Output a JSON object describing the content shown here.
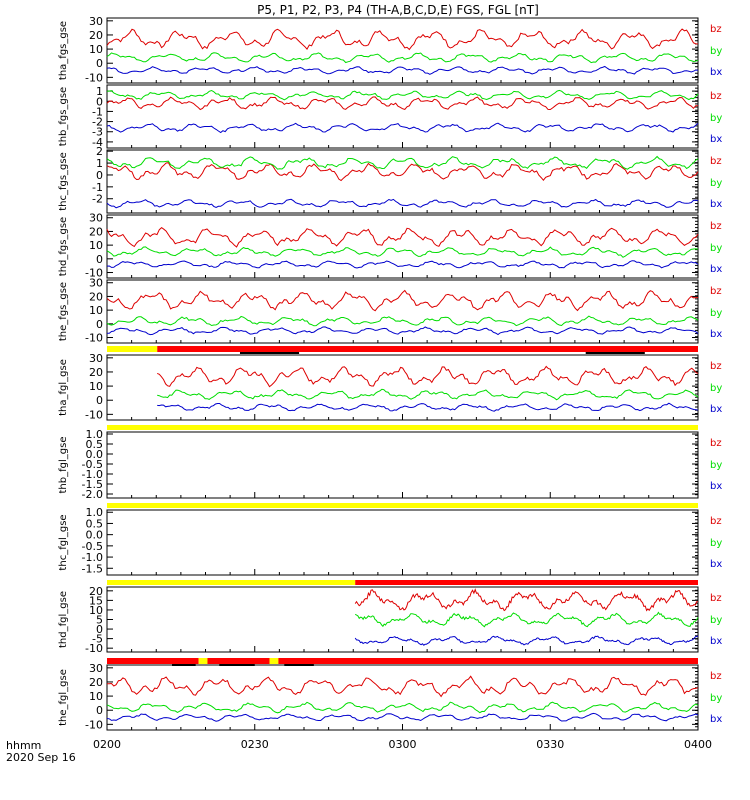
{
  "title": "P5, P1, P2, P3, P4 (TH-A,B,C,D,E) FGS, FGL [nT]",
  "footer": {
    "time_label": "hhmm",
    "date": "2020 Sep 16"
  },
  "colors": {
    "bz": "#dd0000",
    "by": "#00dd00",
    "bx": "#0000cc",
    "flag_red": "#ff0000",
    "flag_yellow": "#ffff00",
    "flag_black": "#000000"
  },
  "chart_data": {
    "type": "line",
    "x_axis": {
      "ticks": [
        "0200",
        "0230",
        "0300",
        "0330",
        "0400"
      ],
      "range_hours": [
        2.0,
        4.0
      ]
    },
    "panels": [
      {
        "label": "tha_fgs_gse",
        "yticks": [
          "30",
          "20",
          "10",
          "0",
          "-10"
        ],
        "ylim": [
          -14,
          32
        ],
        "series": [
          {
            "name": "bz",
            "level": 17,
            "amp": 4
          },
          {
            "name": "by",
            "level": 4,
            "amp": 2
          },
          {
            "name": "bx",
            "level": -5,
            "amp": 1.5
          }
        ]
      },
      {
        "label": "thb_fgs_gse",
        "yticks": [
          "1",
          "0",
          "-1",
          "-2",
          "-3",
          "-4"
        ],
        "ylim": [
          -4.6,
          1.6
        ],
        "series": [
          {
            "name": "bz",
            "level": -0.2,
            "amp": 0.35
          },
          {
            "name": "by",
            "level": 0.6,
            "amp": 0.25
          },
          {
            "name": "bx",
            "level": -2.6,
            "amp": 0.25
          }
        ]
      },
      {
        "label": "thc_fgs_gse",
        "yticks": [
          "2",
          "1",
          "0",
          "-1",
          "-2"
        ],
        "ylim": [
          -3.2,
          2.1
        ],
        "series": [
          {
            "name": "bz",
            "level": 0.3,
            "amp": 0.4
          },
          {
            "name": "by",
            "level": 1.0,
            "amp": 0.3
          },
          {
            "name": "bx",
            "level": -2.4,
            "amp": 0.2
          }
        ]
      },
      {
        "label": "thd_fgs_gse",
        "yticks": [
          "30",
          "20",
          "10",
          "0",
          "-10"
        ],
        "ylim": [
          -14,
          32
        ],
        "series": [
          {
            "name": "bz",
            "level": 16,
            "amp": 4
          },
          {
            "name": "by",
            "level": 5,
            "amp": 2
          },
          {
            "name": "bx",
            "level": -4,
            "amp": 1.5
          }
        ]
      },
      {
        "label": "the_fgs_gse",
        "yticks": [
          "30",
          "20",
          "10",
          "0",
          "-10"
        ],
        "ylim": [
          -14,
          32
        ],
        "series": [
          {
            "name": "bz",
            "level": 17,
            "amp": 4
          },
          {
            "name": "by",
            "level": 2,
            "amp": 2
          },
          {
            "name": "bx",
            "level": -5,
            "amp": 1.5
          }
        ]
      },
      {
        "label": "tha_fgl_gse",
        "yticks": [
          "30",
          "20",
          "10",
          "0",
          "-10"
        ],
        "ylim": [
          -14,
          32
        ],
        "data_start_hours": 2.17,
        "series": [
          {
            "name": "bz",
            "level": 17,
            "amp": 4
          },
          {
            "name": "by",
            "level": 4,
            "amp": 2
          },
          {
            "name": "bx",
            "level": -5,
            "amp": 1.5
          }
        ]
      },
      {
        "label": "thb_fgl_gse",
        "yticks": [
          "1.0",
          "0.5",
          "0.0",
          "-0.5",
          "-1.0",
          "-1.5",
          "-2.0"
        ],
        "ylim": [
          -2.2,
          1.1
        ],
        "empty": true,
        "series": []
      },
      {
        "label": "thc_fgl_gse",
        "yticks": [
          "1.0",
          "0.5",
          "0.0",
          "-0.5",
          "-1.0",
          "-1.5"
        ],
        "ylim": [
          -1.8,
          1.1
        ],
        "empty": true,
        "series": []
      },
      {
        "label": "thd_fgl_gse",
        "yticks": [
          "20",
          "15",
          "10",
          "5",
          "0",
          "-5",
          "-10"
        ],
        "ylim": [
          -12,
          22
        ],
        "data_start_hours": 2.84,
        "series": [
          {
            "name": "bz",
            "level": 15,
            "amp": 3
          },
          {
            "name": "by",
            "level": 5,
            "amp": 2
          },
          {
            "name": "bx",
            "level": -6,
            "amp": 1.3
          }
        ]
      },
      {
        "label": "the_fgl_gse",
        "yticks": [
          "30",
          "20",
          "10",
          "0",
          "-10"
        ],
        "ylim": [
          -14,
          32
        ],
        "series": [
          {
            "name": "bz",
            "level": 17,
            "amp": 4
          },
          {
            "name": "by",
            "level": 2,
            "amp": 2
          },
          {
            "name": "bx",
            "level": -5,
            "amp": 1.5
          }
        ]
      }
    ],
    "flag_bars": [
      {
        "after_panel": 4,
        "segments": [
          {
            "from": 2.0,
            "to": 2.17,
            "color": "yellow"
          },
          {
            "from": 2.17,
            "to": 4.0,
            "color": "red"
          }
        ],
        "black_marks": [
          {
            "from": 2.45,
            "to": 2.65
          },
          {
            "from": 3.62,
            "to": 3.82
          }
        ]
      },
      {
        "after_panel": 5,
        "segments": [
          {
            "from": 2.0,
            "to": 4.0,
            "color": "yellow"
          }
        ],
        "black_marks": []
      },
      {
        "after_panel": 6,
        "segments": [
          {
            "from": 2.0,
            "to": 4.0,
            "color": "yellow"
          }
        ],
        "black_marks": []
      },
      {
        "after_panel": 7,
        "segments": [
          {
            "from": 2.0,
            "to": 2.84,
            "color": "yellow"
          },
          {
            "from": 2.84,
            "to": 4.0,
            "color": "red"
          }
        ],
        "black_marks": []
      },
      {
        "after_panel": 8,
        "segments": [
          {
            "from": 2.0,
            "to": 2.31,
            "color": "red"
          },
          {
            "from": 2.31,
            "to": 2.34,
            "color": "yellow"
          },
          {
            "from": 2.34,
            "to": 2.55,
            "color": "red"
          },
          {
            "from": 2.55,
            "to": 2.58,
            "color": "yellow"
          },
          {
            "from": 2.58,
            "to": 4.0,
            "color": "red"
          }
        ],
        "black_marks": [
          {
            "from": 2.22,
            "to": 2.3
          },
          {
            "from": 2.38,
            "to": 2.5
          },
          {
            "from": 2.6,
            "to": 2.7
          }
        ]
      }
    ]
  }
}
